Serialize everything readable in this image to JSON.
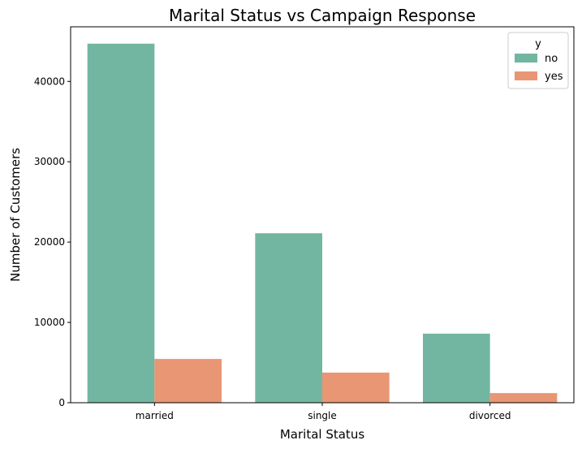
{
  "chart_data": {
    "type": "bar",
    "title": "Marital Status vs Campaign Response",
    "xlabel": "Marital Status",
    "ylabel": "Number of Customers",
    "categories": [
      "married",
      "single",
      "divorced"
    ],
    "series": [
      {
        "name": "no",
        "values": [
          44700,
          21100,
          8600
        ],
        "color": "#72b6a1"
      },
      {
        "name": "yes",
        "values": [
          5450,
          3750,
          1200
        ],
        "color": "#e99675"
      }
    ],
    "ylim": [
      0,
      46800
    ],
    "yticks": [
      0,
      10000,
      20000,
      30000,
      40000
    ],
    "legend": {
      "title": "y",
      "placement": "top-right"
    },
    "grid": false
  }
}
